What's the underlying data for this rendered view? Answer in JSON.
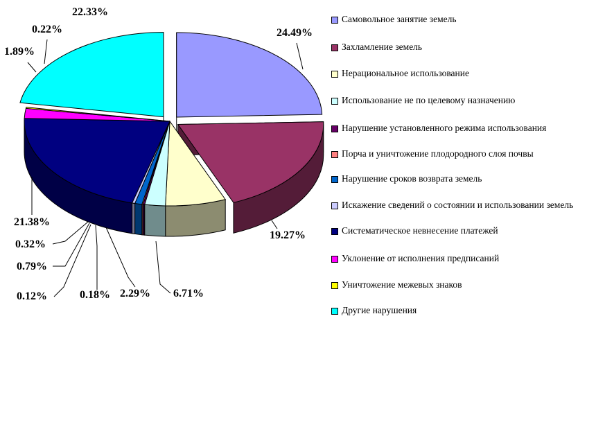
{
  "chart_data": {
    "type": "pie",
    "title": "",
    "legend_position": "right",
    "slices": [
      {
        "label": "Самовольное занятие земель",
        "value": 24.49,
        "display": "24.49%",
        "color": "#9999ff"
      },
      {
        "label": "Захламление земель",
        "value": 19.27,
        "display": "19.27%",
        "color": "#993366"
      },
      {
        "label": "Нерациональное использование",
        "value": 6.71,
        "display": "6.71%",
        "color": "#ffffcc"
      },
      {
        "label": "Использование не по целевому назначению",
        "value": 2.29,
        "display": "2.29%",
        "color": "#ccffff"
      },
      {
        "label": "Нарушение установленного режима использования",
        "value": 0.18,
        "display": "0.18%",
        "color": "#660066"
      },
      {
        "label": "Порча и уничтожение плодородного слоя почвы",
        "value": 0.12,
        "display": "0.12%",
        "color": "#ff8080"
      },
      {
        "label": "Нарушение сроков возврата земель",
        "value": 0.79,
        "display": "0.79%",
        "color": "#0066cc"
      },
      {
        "label": "Искажение сведений о состоянии и использовании земель",
        "value": 0.32,
        "display": "0.32%",
        "color": "#ccccff"
      },
      {
        "label": "Систематическое невнесение платежей",
        "value": 21.38,
        "display": "21.38%",
        "color": "#000080"
      },
      {
        "label": "Уклонение от исполнения предписаний",
        "value": 1.89,
        "display": "1.89%",
        "color": "#ff00ff"
      },
      {
        "label": "Уничтожение межевых знаков",
        "value": 0.22,
        "display": "0.22%",
        "color": "#ffff00"
      },
      {
        "label": "Другие нарушения",
        "value": 22.33,
        "display": "22.33%",
        "color": "#00ffff"
      }
    ]
  }
}
